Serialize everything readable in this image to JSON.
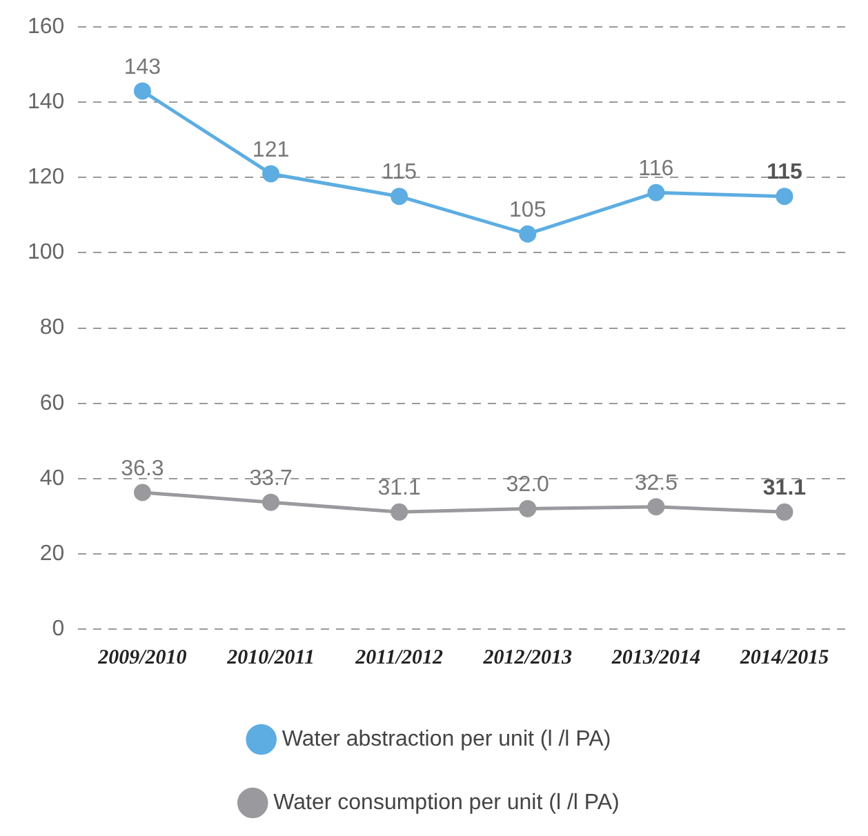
{
  "chart_data": {
    "type": "line",
    "categories": [
      "2009/2010",
      "2010/2011",
      "2011/2012",
      "2012/2013",
      "2013/2014",
      "2014/2015"
    ],
    "series": [
      {
        "name": "Water abstraction per unit (l /l PA)",
        "color": "#5dade2",
        "values": [
          143,
          121,
          115,
          105,
          116,
          115
        ],
        "value_labels": [
          "143",
          "121",
          "115",
          "105",
          "116",
          "115"
        ]
      },
      {
        "name": "Water consumption per unit (l /l PA)",
        "color": "#9a9a9e",
        "values": [
          36.3,
          33.7,
          31.1,
          32.0,
          32.5,
          31.1
        ],
        "value_labels": [
          "36.3",
          "33.7",
          "31.1",
          "32.0",
          "32.5",
          "31.1"
        ]
      }
    ],
    "ylim": [
      0,
      160
    ],
    "yticks": [
      0,
      20,
      40,
      60,
      80,
      100,
      120,
      140,
      160
    ],
    "grid": "y",
    "legend": "bottom",
    "marker": "circle",
    "line_style": "solid"
  }
}
